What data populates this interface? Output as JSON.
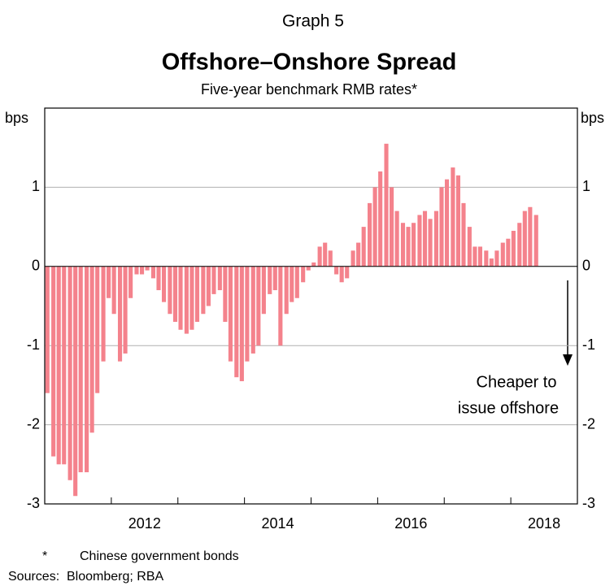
{
  "chart_data": {
    "type": "bar",
    "graph_label": "Graph 5",
    "title": "Offshore–Onshore Spread",
    "subtitle": "Five-year benchmark RMB rates*",
    "y_unit_left": "bps",
    "y_unit_right": "bps",
    "annotation": [
      "Cheaper to",
      "issue offshore"
    ],
    "footnote_marker": "*",
    "footnote": "Chinese government bonds",
    "sources_label": "Sources:",
    "sources": "Bloomberg; RBA",
    "color": "#f4828c",
    "grid": true,
    "xlim": [
      2011,
      2019
    ],
    "ylim": [
      -3,
      2
    ],
    "yticks": [
      -3,
      -2,
      -1,
      0,
      1
    ],
    "xticks": [
      {
        "value": 2012.5,
        "label": "2012"
      },
      {
        "value": 2014.5,
        "label": "2014"
      },
      {
        "value": 2016.5,
        "label": "2016"
      },
      {
        "value": 2018.5,
        "label": "2018"
      }
    ],
    "x_minor_ticks": [
      2012,
      2013,
      2014,
      2015,
      2016,
      2017,
      2018
    ],
    "x": [
      2011.04,
      2011.13,
      2011.21,
      2011.29,
      2011.38,
      2011.46,
      2011.54,
      2011.63,
      2011.71,
      2011.79,
      2011.88,
      2011.96,
      2012.04,
      2012.13,
      2012.21,
      2012.29,
      2012.38,
      2012.46,
      2012.54,
      2012.63,
      2012.71,
      2012.79,
      2012.88,
      2012.96,
      2013.04,
      2013.13,
      2013.21,
      2013.29,
      2013.38,
      2013.46,
      2013.54,
      2013.63,
      2013.71,
      2013.79,
      2013.88,
      2013.96,
      2014.04,
      2014.13,
      2014.21,
      2014.29,
      2014.38,
      2014.46,
      2014.54,
      2014.63,
      2014.71,
      2014.79,
      2014.88,
      2014.96,
      2015.04,
      2015.13,
      2015.21,
      2015.29,
      2015.38,
      2015.46,
      2015.54,
      2015.63,
      2015.71,
      2015.79,
      2015.88,
      2015.96,
      2016.04,
      2016.13,
      2016.21,
      2016.29,
      2016.38,
      2016.46,
      2016.54,
      2016.63,
      2016.71,
      2016.79,
      2016.88,
      2016.96,
      2017.04,
      2017.13,
      2017.21,
      2017.29,
      2017.38,
      2017.46,
      2017.54,
      2017.63,
      2017.71,
      2017.79,
      2017.88,
      2017.96,
      2018.04,
      2018.13,
      2018.21,
      2018.29,
      2018.38
    ],
    "values": [
      -1.6,
      -2.4,
      -2.5,
      -2.5,
      -2.7,
      -2.9,
      -2.6,
      -2.6,
      -2.1,
      -1.6,
      -1.2,
      -0.4,
      -0.6,
      -1.2,
      -1.1,
      -0.4,
      -0.1,
      -0.1,
      -0.05,
      -0.15,
      -0.3,
      -0.45,
      -0.6,
      -0.7,
      -0.8,
      -0.85,
      -0.8,
      -0.7,
      -0.6,
      -0.5,
      -0.35,
      -0.3,
      -0.7,
      -1.2,
      -1.4,
      -1.45,
      -1.2,
      -1.1,
      -1.0,
      -0.6,
      -0.35,
      -0.3,
      -1.0,
      -0.6,
      -0.45,
      -0.4,
      -0.2,
      -0.05,
      0.05,
      0.25,
      0.3,
      0.2,
      -0.1,
      -0.2,
      -0.15,
      0.2,
      0.3,
      0.5,
      0.8,
      1.0,
      1.2,
      1.55,
      1.0,
      0.7,
      0.55,
      0.5,
      0.55,
      0.65,
      0.7,
      0.6,
      0.7,
      1.0,
      1.1,
      1.25,
      1.15,
      0.8,
      0.5,
      0.25,
      0.25,
      0.2,
      0.1,
      0.2,
      0.3,
      0.35,
      0.45,
      0.55,
      0.7,
      0.75,
      0.65
    ]
  }
}
